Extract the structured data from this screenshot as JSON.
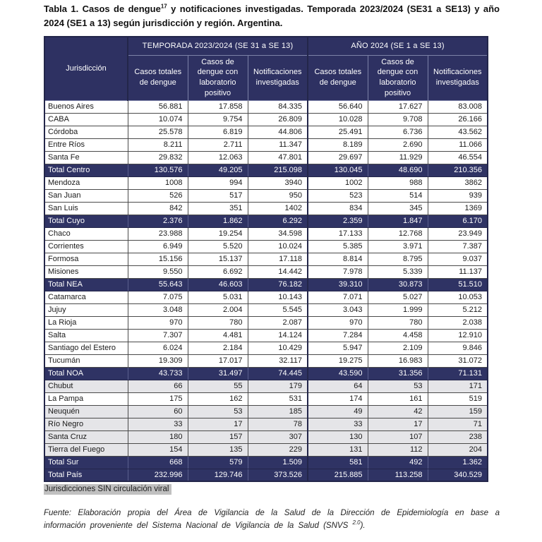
{
  "title": {
    "pre_sup": "Tabla 1. Casos de dengue",
    "sup": "17",
    "post_sup": " y notificaciones investigadas. Temporada 2023/2024 (SE31 a SE13) y año 2024 (SE1 a 13) según jurisdicción y región. Argentina."
  },
  "colors": {
    "header_bg": "#2e3162",
    "total_row_bg": "#2f3364",
    "no_circulation_row_bg": "#e5e5e8",
    "note_highlight_bg": "#c0c0c0",
    "table_border": "#23264a"
  },
  "table": {
    "corner_header": "Jurisdicción",
    "groups": [
      {
        "label": "TEMPORADA 2023/2024 (SE 31 a SE 13)",
        "columns": [
          "Casos totales de dengue",
          "Casos de dengue con laboratorio positivo",
          "Notificaciones investigadas"
        ]
      },
      {
        "label": "AÑO 2024 (SE 1 a SE 13)",
        "columns": [
          "Casos totales de dengue",
          "Casos de dengue con laboratorio positivo",
          "Notificaciones investigadas"
        ]
      }
    ],
    "rows": [
      {
        "label": "Buenos Aires",
        "type": "data",
        "highlighted": false,
        "values": [
          "56.881",
          "17.858",
          "84.335",
          "56.640",
          "17.627",
          "83.008"
        ]
      },
      {
        "label": "CABA",
        "type": "data",
        "highlighted": false,
        "values": [
          "10.074",
          "9.754",
          "26.809",
          "10.028",
          "9.708",
          "26.166"
        ]
      },
      {
        "label": "Córdoba",
        "type": "data",
        "highlighted": false,
        "values": [
          "25.578",
          "6.819",
          "44.806",
          "25.491",
          "6.736",
          "43.562"
        ]
      },
      {
        "label": "Entre Ríos",
        "type": "data",
        "highlighted": false,
        "values": [
          "8.211",
          "2.711",
          "11.347",
          "8.189",
          "2.690",
          "11.066"
        ]
      },
      {
        "label": "Santa Fe",
        "type": "data",
        "highlighted": false,
        "values": [
          "29.832",
          "12.063",
          "47.801",
          "29.697",
          "11.929",
          "46.554"
        ]
      },
      {
        "label": "Total Centro",
        "type": "total",
        "highlighted": false,
        "values": [
          "130.576",
          "49.205",
          "215.098",
          "130.045",
          "48.690",
          "210.356"
        ]
      },
      {
        "label": "Mendoza",
        "type": "data",
        "highlighted": false,
        "values": [
          "1008",
          "994",
          "3940",
          "1002",
          "988",
          "3862"
        ]
      },
      {
        "label": "San Juan",
        "type": "data",
        "highlighted": false,
        "values": [
          "526",
          "517",
          "950",
          "523",
          "514",
          "939"
        ]
      },
      {
        "label": "San Luis",
        "type": "data",
        "highlighted": false,
        "values": [
          "842",
          "351",
          "1402",
          "834",
          "345",
          "1369"
        ]
      },
      {
        "label": "Total Cuyo",
        "type": "total",
        "highlighted": false,
        "values": [
          "2.376",
          "1.862",
          "6.292",
          "2.359",
          "1.847",
          "6.170"
        ]
      },
      {
        "label": "Chaco",
        "type": "data",
        "highlighted": false,
        "values": [
          "23.988",
          "19.254",
          "34.598",
          "17.133",
          "12.768",
          "23.949"
        ]
      },
      {
        "label": "Corrientes",
        "type": "data",
        "highlighted": false,
        "values": [
          "6.949",
          "5.520",
          "10.024",
          "5.385",
          "3.971",
          "7.387"
        ]
      },
      {
        "label": "Formosa",
        "type": "data",
        "highlighted": false,
        "values": [
          "15.156",
          "15.137",
          "17.118",
          "8.814",
          "8.795",
          "9.037"
        ]
      },
      {
        "label": "Misiones",
        "type": "data",
        "highlighted": false,
        "values": [
          "9.550",
          "6.692",
          "14.442",
          "7.978",
          "5.339",
          "11.137"
        ]
      },
      {
        "label": "Total NEA",
        "type": "total",
        "highlighted": false,
        "values": [
          "55.643",
          "46.603",
          "76.182",
          "39.310",
          "30.873",
          "51.510"
        ]
      },
      {
        "label": "Catamarca",
        "type": "data",
        "highlighted": false,
        "values": [
          "7.075",
          "5.031",
          "10.143",
          "7.071",
          "5.027",
          "10.053"
        ]
      },
      {
        "label": "Jujuy",
        "type": "data",
        "highlighted": false,
        "values": [
          "3.048",
          "2.004",
          "5.545",
          "3.043",
          "1.999",
          "5.212"
        ]
      },
      {
        "label": "La Rioja",
        "type": "data",
        "highlighted": false,
        "values": [
          "970",
          "780",
          "2.087",
          "970",
          "780",
          "2.038"
        ]
      },
      {
        "label": "Salta",
        "type": "data",
        "highlighted": false,
        "values": [
          "7.307",
          "4.481",
          "14.124",
          "7.284",
          "4.458",
          "12.910"
        ]
      },
      {
        "label": "Santiago del Estero",
        "type": "data",
        "highlighted": false,
        "values": [
          "6.024",
          "2.184",
          "10.429",
          "5.947",
          "2.109",
          "9.846"
        ]
      },
      {
        "label": "Tucumán",
        "type": "data",
        "highlighted": false,
        "values": [
          "19.309",
          "17.017",
          "32.117",
          "19.275",
          "16.983",
          "31.072"
        ]
      },
      {
        "label": "Total NOA",
        "type": "total",
        "highlighted": false,
        "values": [
          "43.733",
          "31.497",
          "74.445",
          "43.590",
          "31.356",
          "71.131"
        ]
      },
      {
        "label": "Chubut",
        "type": "data",
        "highlighted": true,
        "values": [
          "66",
          "55",
          "179",
          "64",
          "53",
          "171"
        ]
      },
      {
        "label": "La Pampa",
        "type": "data",
        "highlighted": false,
        "values": [
          "175",
          "162",
          "531",
          "174",
          "161",
          "519"
        ]
      },
      {
        "label": "Neuquén",
        "type": "data",
        "highlighted": true,
        "values": [
          "60",
          "53",
          "185",
          "49",
          "42",
          "159"
        ]
      },
      {
        "label": "Río Negro",
        "type": "data",
        "highlighted": true,
        "values": [
          "33",
          "17",
          "78",
          "33",
          "17",
          "71"
        ]
      },
      {
        "label": "Santa Cruz",
        "type": "data",
        "highlighted": true,
        "values": [
          "180",
          "157",
          "307",
          "130",
          "107",
          "238"
        ]
      },
      {
        "label": "Tierra del Fuego",
        "type": "data",
        "highlighted": true,
        "values": [
          "154",
          "135",
          "229",
          "131",
          "112",
          "204"
        ]
      },
      {
        "label": "Total Sur",
        "type": "total",
        "highlighted": false,
        "values": [
          "668",
          "579",
          "1.509",
          "581",
          "492",
          "1.362"
        ]
      },
      {
        "label": "Total País",
        "type": "total",
        "highlighted": false,
        "values": [
          "232.996",
          "129.746",
          "373.526",
          "215.885",
          "113.258",
          "340.529"
        ]
      }
    ]
  },
  "note": "Jurisdicciones SIN circulación viral",
  "source": {
    "pre_sup": "Fuente: Elaboración propia del Área de Vigilancia de la Salud de la Dirección de Epidemiología en base a información proveniente del Sistema Nacional de Vigilancia de la Salud (SNVS ",
    "sup": "2.0",
    "post_sup": ")."
  }
}
